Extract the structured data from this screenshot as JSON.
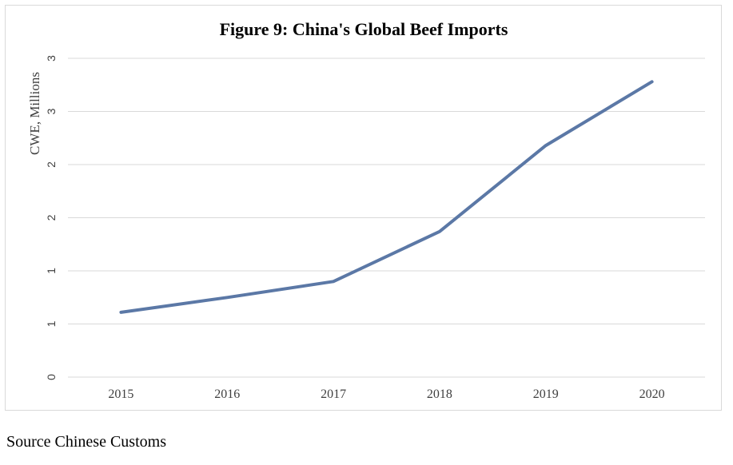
{
  "chart_data": {
    "type": "line",
    "title": "Figure 9: China's Global Beef Imports",
    "ylabel": "CWE, Millions",
    "xlabel": "",
    "categories": [
      "2015",
      "2016",
      "2017",
      "2018",
      "2019",
      "2020"
    ],
    "series": [
      {
        "values": [
          0.61,
          0.75,
          0.9,
          1.37,
          2.18,
          2.78
        ],
        "color": "#5b78a6"
      }
    ],
    "yticks": [
      0,
      0.5,
      1,
      1.5,
      2,
      2.5,
      3
    ],
    "ytick_labels": [
      "0",
      "1",
      "1",
      "2",
      "2",
      "3",
      "3"
    ],
    "ylim": [
      0,
      3
    ],
    "grid": true,
    "legend": "none"
  },
  "source": "Source Chinese Customs"
}
